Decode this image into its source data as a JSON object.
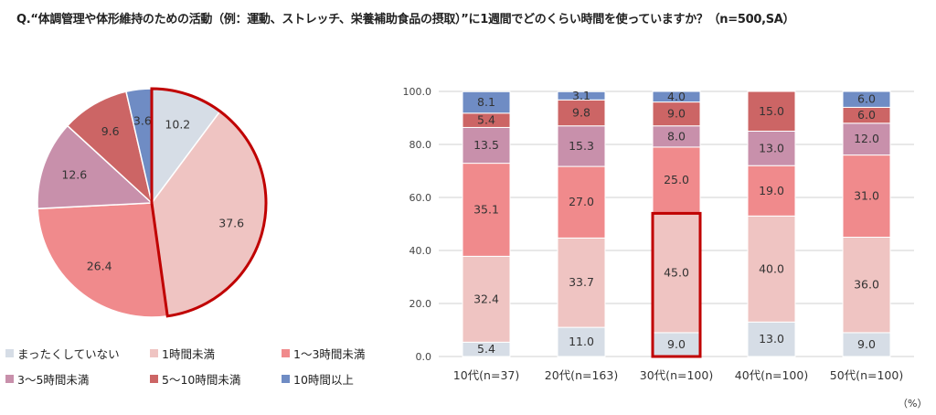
{
  "question": "Q.“体調管理や体形維持のための活動（例：運動、ストレッチ、栄養補助食品の摂取）”に1週間でどのくらい時間を使っていますか？（n=500,SA）",
  "unit_label": "（%）",
  "colors": {
    "none": "#d6dde6",
    "under1": "#efc4c2",
    "h1to3": "#f08a8c",
    "h3to5": "#c890ab",
    "h5to10": "#cc6565",
    "over10": "#6f8cc4",
    "highlight": "#c00000"
  },
  "legend": [
    {
      "label": "まったくしていない",
      "color_key": "none"
    },
    {
      "label": "1時間未満",
      "color_key": "under1"
    },
    {
      "label": "1～3時間未満",
      "color_key": "h1to3"
    },
    {
      "label": "3～5時間未満",
      "color_key": "h3to5"
    },
    {
      "label": "5～10時間未満",
      "color_key": "h5to10"
    },
    {
      "label": "10時間以上",
      "color_key": "over10"
    }
  ],
  "chart_data": [
    {
      "type": "pie",
      "labels": [
        "まったくしていない",
        "1時間未満",
        "1～3時間未満",
        "3～5時間未満",
        "5～10時間未満",
        "10時間以上"
      ],
      "values": [
        10.2,
        37.6,
        26.4,
        12.6,
        9.6,
        3.6
      ],
      "value_labels": [
        "10.2",
        "37.6",
        "26.4",
        "12.6",
        "9.6",
        "3.6"
      ],
      "highlighted_slices": [
        "まったくしていない",
        "1時間未満"
      ]
    },
    {
      "type": "bar",
      "stacked": true,
      "categories": [
        "10代(n=37)",
        "20代(n=163)",
        "30代(n=100)",
        "40代(n=100)",
        "50代(n=100)"
      ],
      "ylim": [
        0,
        100
      ],
      "yticks": [
        "0.0",
        "20.0",
        "40.0",
        "60.0",
        "80.0",
        "100.0"
      ],
      "grid": true,
      "series": [
        {
          "name": "まったくしていない",
          "color_key": "none",
          "values": [
            5.4,
            11.0,
            9.0,
            13.0,
            9.0
          ],
          "labels": [
            "5.4",
            "11.0",
            "9.0",
            "13.0",
            "9.0"
          ]
        },
        {
          "name": "1時間未満",
          "color_key": "under1",
          "values": [
            32.4,
            33.7,
            45.0,
            40.0,
            36.0
          ],
          "labels": [
            "32.4",
            "33.7",
            "45.0",
            "40.0",
            "36.0"
          ]
        },
        {
          "name": "1～3時間未満",
          "color_key": "h1to3",
          "values": [
            35.1,
            27.0,
            25.0,
            19.0,
            31.0
          ],
          "labels": [
            "35.1",
            "27.0",
            "25.0",
            "19.0",
            "31.0"
          ]
        },
        {
          "name": "3～5時間未満",
          "color_key": "h3to5",
          "values": [
            13.5,
            15.3,
            8.0,
            13.0,
            12.0
          ],
          "labels": [
            "13.5",
            "15.3",
            "8.0",
            "13.0",
            "12.0"
          ]
        },
        {
          "name": "5～10時間未満",
          "color_key": "h5to10",
          "values": [
            5.4,
            9.8,
            9.0,
            15.0,
            6.0
          ],
          "labels": [
            "5.4",
            "9.8",
            "9.0",
            "15.0",
            "6.0"
          ]
        },
        {
          "name": "10時間以上",
          "color_key": "over10",
          "values": [
            8.1,
            3.1,
            4.0,
            0,
            6.0
          ],
          "labels": [
            "8.1",
            "3.1",
            "4.0",
            "",
            "6.0"
          ]
        }
      ],
      "highlight": {
        "category": "30代(n=100)",
        "series": [
          "まったくしていない",
          "1時間未満"
        ]
      }
    }
  ]
}
